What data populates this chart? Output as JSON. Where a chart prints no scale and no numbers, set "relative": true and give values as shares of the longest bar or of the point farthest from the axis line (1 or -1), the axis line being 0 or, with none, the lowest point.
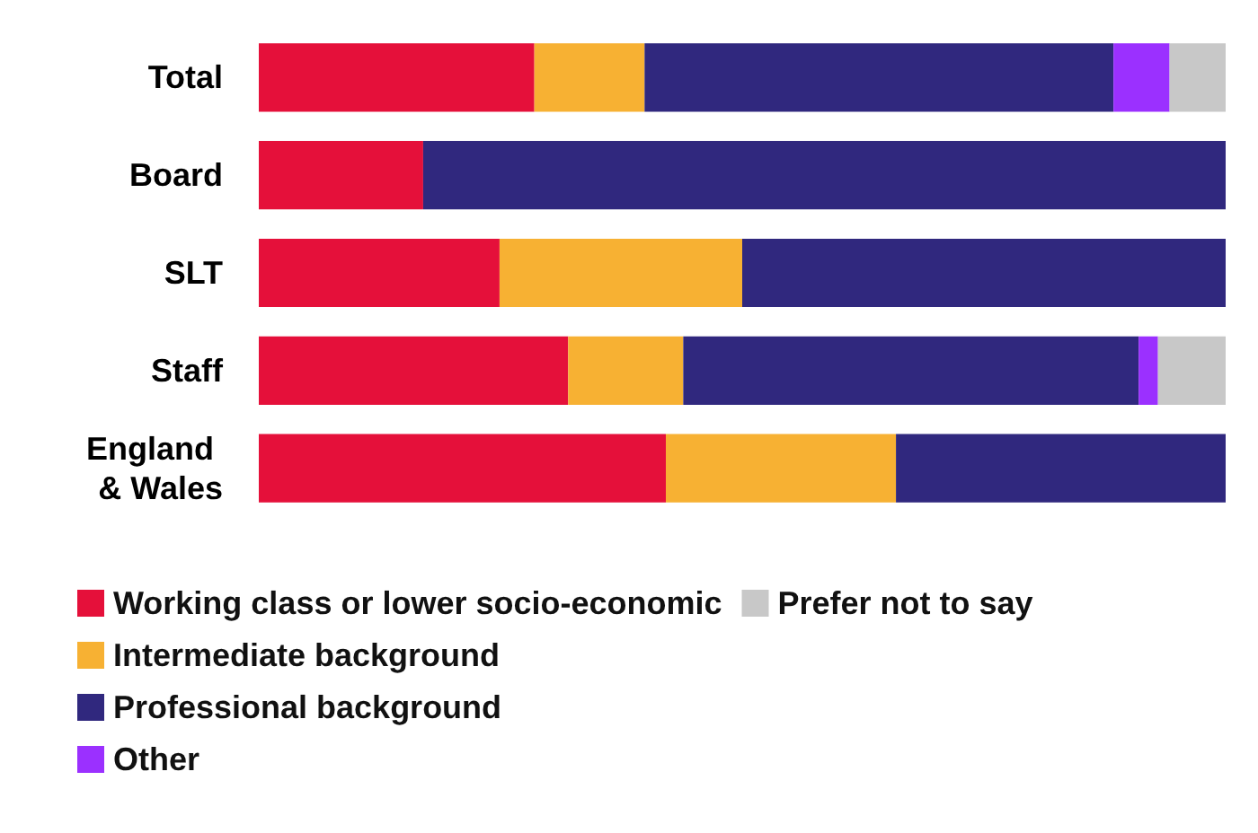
{
  "chart_data": {
    "type": "bar",
    "orientation": "horizontal",
    "stacked": true,
    "relative": true,
    "legend": "bottom left",
    "categories": [
      "Total",
      "Board",
      "SLT",
      "Staff",
      "England & Wales"
    ],
    "series": [
      {
        "name": "Working class or lower socio-economic",
        "color": "#e5103a",
        "values": [
          0.285,
          0.17,
          0.249,
          0.32,
          0.421
        ]
      },
      {
        "name": "Intermediate background",
        "color": "#f7b133",
        "values": [
          0.114,
          null,
          0.251,
          0.119,
          0.238
        ]
      },
      {
        "name": "Professional background",
        "color": "#30287e",
        "values": [
          0.485,
          0.83,
          0.5,
          0.471,
          0.341
        ]
      },
      {
        "name": "Other",
        "color": "#9b30ff",
        "values": [
          0.058,
          null,
          null,
          0.02,
          null
        ]
      },
      {
        "name": "Prefer not to say",
        "color": "#c8c8c8",
        "values": [
          0.058,
          null,
          null,
          0.07,
          null
        ]
      }
    ]
  }
}
